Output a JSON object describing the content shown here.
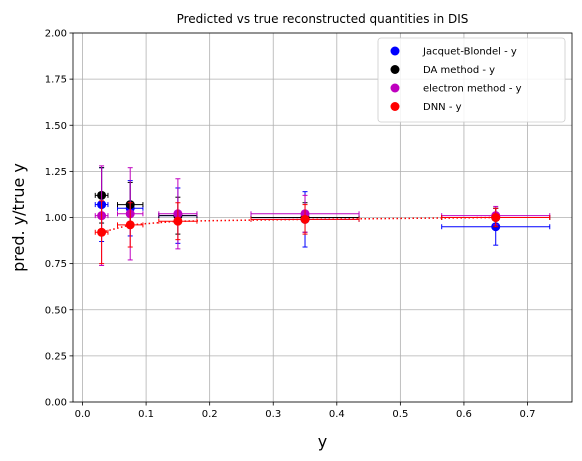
{
  "chart_data": {
    "type": "scatter",
    "title": "Predicted vs true reconstructed quantities in DIS",
    "xlabel": "y",
    "ylabel": "pred. y/true y",
    "xlim": [
      -0.015,
      0.77
    ],
    "ylim": [
      0.0,
      2.0
    ],
    "xticks": [
      "0.0",
      "0.1",
      "0.2",
      "0.3",
      "0.4",
      "0.5",
      "0.6",
      "0.7"
    ],
    "xtick_values": [
      0.0,
      0.1,
      0.2,
      0.3,
      0.4,
      0.5,
      0.6,
      0.7
    ],
    "yticks": [
      "0.00",
      "0.25",
      "0.50",
      "0.75",
      "1.00",
      "1.25",
      "1.50",
      "1.75",
      "2.00"
    ],
    "ytick_values": [
      0.0,
      0.25,
      0.5,
      0.75,
      1.0,
      1.25,
      1.5,
      1.75,
      2.0
    ],
    "grid": true,
    "legend_position": "top-right",
    "series": [
      {
        "name": "Jacquet-Blondel - y",
        "color": "#0000ff",
        "points": [
          {
            "x": 0.03,
            "y": 1.07,
            "xerr": 0.01,
            "yerr": 0.2
          },
          {
            "x": 0.075,
            "y": 1.05,
            "xerr": 0.02,
            "yerr": 0.15
          },
          {
            "x": 0.15,
            "y": 1.01,
            "xerr": 0.03,
            "yerr": 0.15
          },
          {
            "x": 0.35,
            "y": 0.99,
            "xerr": 0.085,
            "yerr": 0.15
          },
          {
            "x": 0.65,
            "y": 0.95,
            "xerr": 0.085,
            "yerr": 0.1
          }
        ]
      },
      {
        "name": "DA method - y",
        "color": "#000000",
        "points": [
          {
            "x": 0.03,
            "y": 1.12,
            "xerr": 0.01,
            "yerr": 0.15
          },
          {
            "x": 0.075,
            "y": 1.07,
            "xerr": 0.02,
            "yerr": 0.12
          },
          {
            "x": 0.15,
            "y": 1.01,
            "xerr": 0.03,
            "yerr": 0.1
          },
          {
            "x": 0.35,
            "y": 1.0,
            "xerr": 0.085,
            "yerr": 0.08
          },
          {
            "x": 0.65,
            "y": 1.0,
            "xerr": 0.085,
            "yerr": 0.05
          }
        ]
      },
      {
        "name": "electron method - y",
        "color": "#bf00bf",
        "points": [
          {
            "x": 0.03,
            "y": 1.01,
            "xerr": 0.01,
            "yerr": 0.27
          },
          {
            "x": 0.075,
            "y": 1.02,
            "xerr": 0.02,
            "yerr": 0.25
          },
          {
            "x": 0.15,
            "y": 1.02,
            "xerr": 0.03,
            "yerr": 0.19
          },
          {
            "x": 0.35,
            "y": 1.02,
            "xerr": 0.085,
            "yerr": 0.1
          },
          {
            "x": 0.65,
            "y": 1.01,
            "xerr": 0.085,
            "yerr": 0.05
          }
        ]
      },
      {
        "name": "DNN - y",
        "color": "#ff0000",
        "dotted_line": true,
        "points": [
          {
            "x": 0.03,
            "y": 0.92,
            "xerr": 0.01,
            "yerr": 0.17
          },
          {
            "x": 0.075,
            "y": 0.96,
            "xerr": 0.02,
            "yerr": 0.12
          },
          {
            "x": 0.15,
            "y": 0.98,
            "xerr": 0.03,
            "yerr": 0.1
          },
          {
            "x": 0.35,
            "y": 0.99,
            "xerr": 0.085,
            "yerr": 0.08
          },
          {
            "x": 0.65,
            "y": 1.0,
            "xerr": 0.085,
            "yerr": 0.05
          }
        ]
      }
    ]
  }
}
